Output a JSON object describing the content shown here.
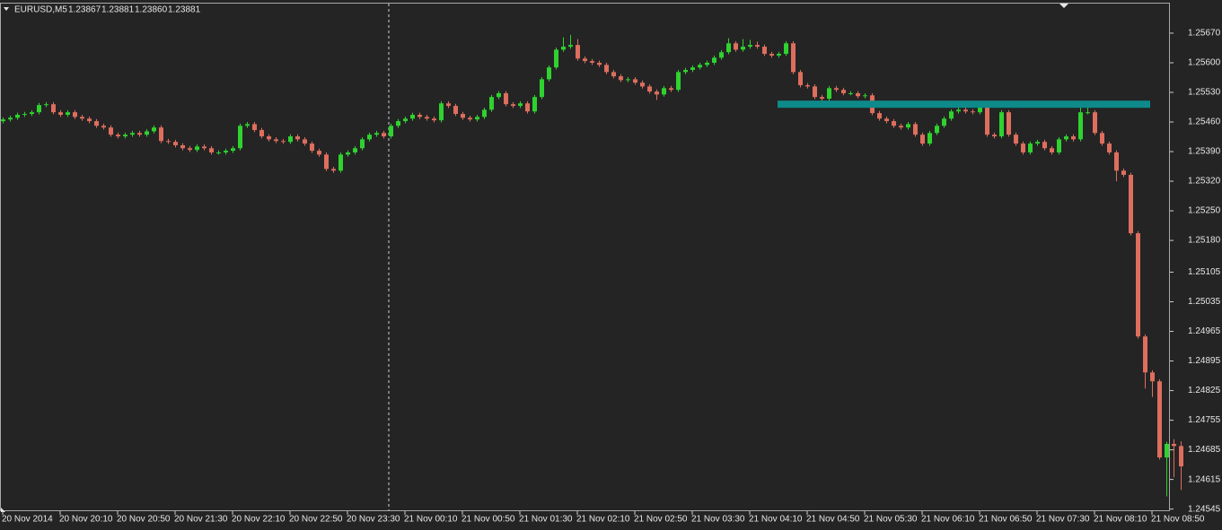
{
  "chart_data": {
    "type": "candlestick",
    "symbol": "EURUSD,M5",
    "header_prices": [
      "1.23867",
      "1.23881",
      "1.23860",
      "1.23881"
    ],
    "up_color": "#2fd22f",
    "down_color": "#de6e5e",
    "level": {
      "value": 1.25502,
      "color": "#0e8a8a"
    },
    "ylim": [
      1.2454,
      1.25742
    ],
    "yticks": [
      {
        "value": 1.2567,
        "label": "1.25670"
      },
      {
        "value": 1.256,
        "label": "1.25600"
      },
      {
        "value": 1.2553,
        "label": "1.25530"
      },
      {
        "value": 1.2546,
        "label": "1.25460"
      },
      {
        "value": 1.2539,
        "label": "1.25390"
      },
      {
        "value": 1.2532,
        "label": "1.25320"
      },
      {
        "value": 1.2525,
        "label": "1.25250"
      },
      {
        "value": 1.2518,
        "label": "1.25180"
      },
      1.25105,
      1.25035,
      1.24965,
      1.24895,
      1.24825,
      1.24755,
      1.24685,
      1.24615,
      1.24545
    ],
    "categories": [
      "20 Nov 2014",
      null,
      null,
      null,
      null,
      null,
      null,
      null,
      "20 Nov 20:10",
      null,
      null,
      null,
      null,
      null,
      null,
      null,
      "20 Nov 20:50",
      null,
      null,
      null,
      null,
      null,
      null,
      null,
      "20 Nov 21:30",
      null,
      null,
      null,
      null,
      null,
      null,
      null,
      "20 Nov 22:10",
      null,
      null,
      null,
      null,
      null,
      null,
      null,
      "20 Nov 22:50",
      null,
      null,
      null,
      null,
      null,
      null,
      null,
      "20 Nov 23:30",
      null,
      null,
      null,
      null,
      null,
      null,
      null,
      "21 Nov 00:10",
      null,
      null,
      null,
      null,
      null,
      null,
      null,
      "21 Nov 00:50",
      null,
      null,
      null,
      null,
      null,
      null,
      null,
      "21 Nov 01:30",
      null,
      null,
      null,
      null,
      null,
      null,
      null,
      "21 Nov 02:10",
      null,
      null,
      null,
      null,
      null,
      null,
      null,
      "21 Nov 02:50",
      null,
      null,
      null,
      null,
      null,
      null,
      null,
      "21 Nov 03:30",
      null,
      null,
      null,
      null,
      null,
      null,
      null,
      "21 Nov 04:10",
      null,
      null,
      null,
      null,
      null,
      null,
      null,
      "21 Nov 04:50",
      null,
      null,
      null,
      null,
      null,
      null,
      null,
      "21 Nov 05:30",
      null,
      null,
      null,
      null,
      null,
      null,
      null,
      "21 Nov 06:10",
      null,
      null,
      null,
      null,
      null,
      null,
      null,
      "21 Nov 06:50",
      null,
      null,
      null,
      null,
      null,
      null,
      null,
      "21 Nov 07:30",
      null,
      null,
      null,
      null,
      null,
      null,
      null,
      "21 Nov 08:10",
      null,
      null,
      null,
      null,
      null,
      null,
      null,
      "21 Nov 08:50",
      null,
      null,
      null,
      null
    ],
    "open": [
      1.25462,
      1.25466,
      1.2547,
      1.25477,
      1.25479,
      1.25483,
      1.255,
      1.25502,
      1.25483,
      1.25477,
      1.25483,
      1.25472,
      1.25468,
      1.25462,
      1.25451,
      1.25447,
      1.2543,
      1.25426,
      1.2543,
      1.25434,
      1.2543,
      1.25438,
      1.25447,
      1.25415,
      1.25413,
      1.25405,
      1.25398,
      1.25394,
      1.25402,
      1.25398,
      1.25388,
      1.25388,
      1.25392,
      1.25398,
      1.25451,
      1.25455,
      1.25441,
      1.25426,
      1.25419,
      1.25415,
      1.25413,
      1.25426,
      1.25419,
      1.25409,
      1.25392,
      1.25383,
      1.25349,
      1.25345,
      1.25383,
      1.25388,
      1.25398,
      1.25419,
      1.2543,
      1.25434,
      1.25426,
      1.25451,
      1.25462,
      1.25468,
      1.25477,
      1.25472,
      1.25468,
      1.25464,
      1.25504,
      1.25498,
      1.25479,
      1.2547,
      1.25466,
      1.25472,
      1.25489,
      1.25519,
      1.25528,
      1.25502,
      1.25498,
      1.25504,
      1.25485,
      1.25519,
      1.25561,
      1.25589,
      1.25631,
      1.25638,
      1.25642,
      1.2561,
      1.25604,
      1.256,
      1.25595,
      1.25578,
      1.25568,
      1.25559,
      1.25561,
      1.25553,
      1.25544,
      1.25532,
      1.25525,
      1.2554,
      1.25536,
      1.25578,
      1.25583,
      1.25589,
      1.25595,
      1.256,
      1.25612,
      1.25625,
      1.25646,
      1.25631,
      1.25638,
      1.25642,
      1.25638,
      1.25621,
      1.25617,
      1.25621,
      1.25646,
      1.25578,
      1.25547,
      1.25544,
      1.25519,
      1.25515,
      1.2554,
      1.25536,
      1.25528,
      1.25528,
      1.25521,
      1.25523,
      1.25481,
      1.25468,
      1.25462,
      1.25451,
      1.25447,
      1.25455,
      1.2543,
      1.25409,
      1.25434,
      1.25451,
      1.25468,
      1.25485,
      1.25489,
      1.25485,
      1.25483,
      1.25494,
      1.2543,
      1.25426,
      1.25483,
      1.2543,
      1.25409,
      1.25388,
      1.25409,
      1.25413,
      1.25398,
      1.25388,
      1.25419,
      1.25426,
      1.25419,
      1.25483,
      1.25483,
      1.25434,
      1.25409,
      1.25388,
      1.25345,
      1.25335,
      1.25197,
      1.24953,
      1.24868,
      1.24847,
      1.24667,
      1.24699,
      1.24694
    ],
    "high": [
      1.25471,
      1.25475,
      1.25482,
      1.25484,
      1.25488,
      1.25505,
      1.25507,
      1.25507,
      1.25488,
      1.25488,
      1.25488,
      1.25477,
      1.25473,
      1.25467,
      1.25456,
      1.25452,
      1.25435,
      1.25435,
      1.25439,
      1.25439,
      1.25443,
      1.25452,
      1.25452,
      1.2542,
      1.25418,
      1.2541,
      1.25403,
      1.25407,
      1.25407,
      1.25403,
      1.25393,
      1.25397,
      1.25403,
      1.25456,
      1.2546,
      1.2546,
      1.25446,
      1.25431,
      1.25424,
      1.2542,
      1.25431,
      1.25431,
      1.25424,
      1.25414,
      1.25397,
      1.25388,
      1.25354,
      1.25388,
      1.25393,
      1.25403,
      1.25424,
      1.25435,
      1.25439,
      1.25439,
      1.25456,
      1.25467,
      1.25473,
      1.25482,
      1.25482,
      1.25477,
      1.25473,
      1.25509,
      1.25509,
      1.25503,
      1.25484,
      1.25475,
      1.25477,
      1.25494,
      1.25524,
      1.25533,
      1.25533,
      1.25507,
      1.25509,
      1.25509,
      1.25524,
      1.25566,
      1.25594,
      1.25636,
      1.2566,
      1.25666,
      1.25656,
      1.25615,
      1.25609,
      1.25605,
      1.256,
      1.25583,
      1.25573,
      1.25566,
      1.25566,
      1.25558,
      1.25549,
      1.25537,
      1.25545,
      1.25545,
      1.25583,
      1.25588,
      1.25594,
      1.256,
      1.25605,
      1.25617,
      1.2563,
      1.25658,
      1.25651,
      1.25656,
      1.25654,
      1.2565,
      1.25643,
      1.25626,
      1.25626,
      1.25651,
      1.25651,
      1.25583,
      1.25552,
      1.25549,
      1.25524,
      1.25545,
      1.25545,
      1.25541,
      1.25533,
      1.25533,
      1.25528,
      1.25528,
      1.25486,
      1.25473,
      1.25467,
      1.25456,
      1.2546,
      1.2546,
      1.25435,
      1.25439,
      1.25456,
      1.25473,
      1.2549,
      1.25494,
      1.25494,
      1.2549,
      1.25499,
      1.25499,
      1.25435,
      1.25488,
      1.25488,
      1.25435,
      1.25414,
      1.25414,
      1.25418,
      1.25418,
      1.25403,
      1.25424,
      1.25431,
      1.25431,
      1.25505,
      1.25508,
      1.25488,
      1.25439,
      1.25414,
      1.25393,
      1.2535,
      1.2534,
      1.25202,
      1.24958,
      1.24873,
      1.24852,
      1.24704,
      1.2471,
      1.24705
    ],
    "low": [
      1.25457,
      1.25461,
      1.25465,
      1.25472,
      1.25474,
      1.25478,
      1.25495,
      1.25478,
      1.25472,
      1.25472,
      1.25467,
      1.25463,
      1.25457,
      1.25446,
      1.25442,
      1.25425,
      1.25421,
      1.25421,
      1.25425,
      1.25425,
      1.25425,
      1.25433,
      1.2541,
      1.25408,
      1.254,
      1.25393,
      1.25389,
      1.25389,
      1.25393,
      1.25383,
      1.25383,
      1.25383,
      1.25387,
      1.25393,
      1.25446,
      1.25436,
      1.25421,
      1.25414,
      1.2541,
      1.25408,
      1.25408,
      1.25414,
      1.25404,
      1.25387,
      1.25378,
      1.25344,
      1.2534,
      1.2534,
      1.25378,
      1.25383,
      1.25393,
      1.25414,
      1.25425,
      1.25421,
      1.25421,
      1.25446,
      1.25457,
      1.25463,
      1.25467,
      1.25463,
      1.25459,
      1.25459,
      1.25493,
      1.25474,
      1.25465,
      1.25461,
      1.25461,
      1.25467,
      1.25484,
      1.25514,
      1.25497,
      1.25493,
      1.25493,
      1.2548,
      1.2548,
      1.25514,
      1.25556,
      1.25584,
      1.25626,
      1.25633,
      1.25605,
      1.25599,
      1.25595,
      1.2559,
      1.25573,
      1.25563,
      1.25554,
      1.25554,
      1.25548,
      1.25539,
      1.25527,
      1.25512,
      1.2552,
      1.25531,
      1.25531,
      1.25573,
      1.25578,
      1.25584,
      1.2559,
      1.25595,
      1.25607,
      1.2562,
      1.25626,
      1.25626,
      1.25633,
      1.25633,
      1.25616,
      1.25612,
      1.25612,
      1.25616,
      1.25573,
      1.25542,
      1.25539,
      1.25514,
      1.2551,
      1.2551,
      1.25531,
      1.25523,
      1.25523,
      1.25516,
      1.25516,
      1.25476,
      1.25463,
      1.25457,
      1.25446,
      1.25442,
      1.25442,
      1.25425,
      1.25404,
      1.25404,
      1.25429,
      1.25446,
      1.25463,
      1.2548,
      1.2548,
      1.25478,
      1.25478,
      1.25425,
      1.25421,
      1.25421,
      1.25425,
      1.25404,
      1.25383,
      1.25383,
      1.25404,
      1.25393,
      1.25383,
      1.25383,
      1.25414,
      1.25414,
      1.25414,
      1.25478,
      1.25429,
      1.25404,
      1.25383,
      1.2532,
      1.2533,
      1.25192,
      1.24948,
      1.2483,
      1.2481,
      1.24662,
      1.24575,
      1.2462,
      1.2459
    ],
    "close": [
      1.25466,
      1.2547,
      1.25477,
      1.25479,
      1.25483,
      1.255,
      1.25502,
      1.25483,
      1.25477,
      1.25483,
      1.25472,
      1.25468,
      1.25462,
      1.25451,
      1.25447,
      1.2543,
      1.25426,
      1.2543,
      1.25434,
      1.2543,
      1.25438,
      1.25447,
      1.25415,
      1.25413,
      1.25405,
      1.25398,
      1.25394,
      1.25402,
      1.25398,
      1.25388,
      1.25388,
      1.25392,
      1.25398,
      1.25451,
      1.25455,
      1.25441,
      1.25426,
      1.25419,
      1.25415,
      1.25413,
      1.25426,
      1.25419,
      1.25409,
      1.25392,
      1.25383,
      1.25349,
      1.25345,
      1.25383,
      1.25388,
      1.25398,
      1.25419,
      1.2543,
      1.25434,
      1.25426,
      1.25451,
      1.25462,
      1.25468,
      1.25477,
      1.25472,
      1.25468,
      1.25464,
      1.25504,
      1.25498,
      1.25479,
      1.2547,
      1.25466,
      1.25472,
      1.25489,
      1.25519,
      1.25528,
      1.25502,
      1.25498,
      1.25504,
      1.25485,
      1.25519,
      1.25561,
      1.25589,
      1.25631,
      1.25638,
      1.25642,
      1.2561,
      1.25604,
      1.256,
      1.25595,
      1.25578,
      1.25568,
      1.25559,
      1.25561,
      1.25553,
      1.25544,
      1.25532,
      1.25525,
      1.2554,
      1.25536,
      1.25578,
      1.25583,
      1.25589,
      1.25595,
      1.256,
      1.25612,
      1.25625,
      1.25646,
      1.25631,
      1.25638,
      1.25642,
      1.25638,
      1.25621,
      1.25617,
      1.25621,
      1.25646,
      1.25578,
      1.25547,
      1.25544,
      1.25519,
      1.25515,
      1.2554,
      1.25536,
      1.25528,
      1.25528,
      1.25521,
      1.25523,
      1.25481,
      1.25468,
      1.25462,
      1.25451,
      1.25447,
      1.25455,
      1.2543,
      1.25409,
      1.25434,
      1.25451,
      1.25468,
      1.25485,
      1.25489,
      1.25485,
      1.25483,
      1.25494,
      1.2543,
      1.25426,
      1.25483,
      1.2543,
      1.25409,
      1.25388,
      1.25409,
      1.25413,
      1.25398,
      1.25388,
      1.25419,
      1.25426,
      1.25419,
      1.25483,
      1.25483,
      1.25434,
      1.25409,
      1.25388,
      1.25345,
      1.25335,
      1.25197,
      1.24953,
      1.24868,
      1.24847,
      1.24667,
      1.24699,
      1.24694,
      1.24646
    ]
  }
}
